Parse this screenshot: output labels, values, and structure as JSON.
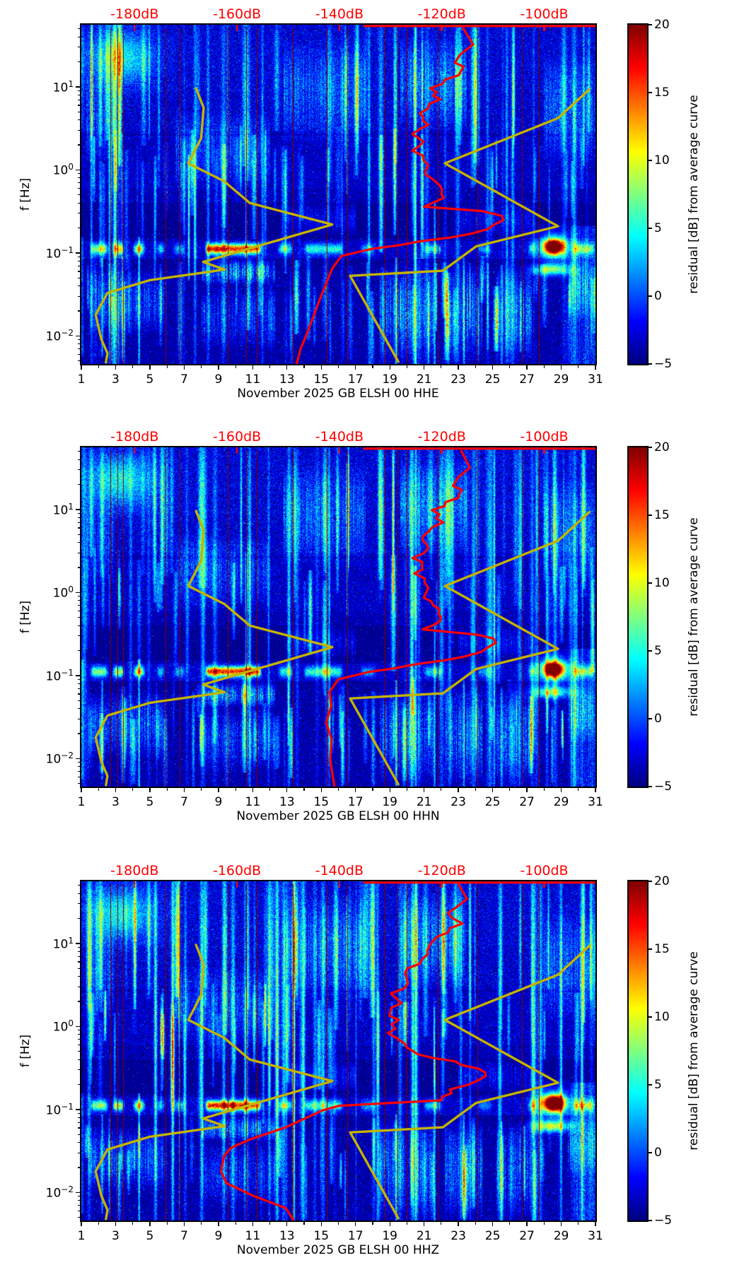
{
  "chart_data": {
    "type": "heatmap",
    "description": "Seismic PPSD residual spectrograms, three components, with Peterson noise models and station average PSD curves overlaid against a top dB axis",
    "x_axis": {
      "unit": "day of month",
      "ticks": [
        1,
        3,
        5,
        7,
        9,
        11,
        13,
        15,
        17,
        19,
        21,
        23,
        25,
        27,
        29,
        31
      ],
      "minor_ticks_every_day": true,
      "range": [
        1,
        31
      ]
    },
    "y_axis": {
      "label": "f [Hz]",
      "scale": "log",
      "ticks": [
        "10^1",
        "10^0",
        "10^-1",
        "10^-2"
      ],
      "range_hz": [
        0.0047,
        56
      ]
    },
    "top_axis": {
      "ticks": [
        "-180dB",
        "-160dB",
        "-140dB",
        "-120dB",
        "-100dB"
      ],
      "tick_values_db": [
        -180,
        -160,
        -140,
        -120,
        -100
      ],
      "range_db": [
        -190.4,
        -90.0
      ],
      "color": "#ff0000"
    },
    "colorbar": {
      "label": "residual [dB] from average curve",
      "ticks": [
        20,
        15,
        10,
        5,
        0,
        -5
      ],
      "range": [
        -5,
        20
      ],
      "colormap": "jet"
    },
    "noise_models": {
      "color": "#c3b300",
      "nlnm_db_hz": [
        [
          -168,
          9.6
        ],
        [
          -166.5,
          5.6
        ],
        [
          -167,
          2.4
        ],
        [
          -169.5,
          1.2
        ],
        [
          -162.5,
          0.73
        ],
        [
          -157.5,
          0.4
        ],
        [
          -141.4,
          0.22
        ],
        [
          -166.6,
          0.078
        ],
        [
          -162.4,
          0.063
        ],
        [
          -177,
          0.047
        ],
        [
          -185.3,
          0.033
        ],
        [
          -187.6,
          0.018
        ],
        [
          -186.5,
          0.0092
        ],
        [
          -185.3,
          0.0062
        ],
        [
          -185.6,
          0.0048
        ]
      ],
      "nhnm_db_hz": [
        [
          -91.2,
          9.3
        ],
        [
          -97.3,
          4.2
        ],
        [
          -119.4,
          1.2
        ],
        [
          -97.3,
          0.21
        ],
        [
          -113.3,
          0.12
        ],
        [
          -119.8,
          0.061
        ],
        [
          -137.9,
          0.053
        ],
        [
          -128.5,
          0.0049
        ]
      ]
    },
    "average_curve_color": "#ff0000",
    "panels": [
      {
        "channel": "HHE",
        "xlabel": "November 2025 GB ELSH 00 HHE",
        "seed": 101,
        "hot_blob_gain": 1.0,
        "average_psd_db_hz": [
          [
            -115.8,
            50.6
          ],
          [
            -113.9,
            32.4
          ],
          [
            -117.5,
            21.8
          ],
          [
            -115.7,
            15.6
          ],
          [
            -121.9,
            9.6
          ],
          [
            -120.8,
            7.1
          ],
          [
            -124.2,
            4.8
          ],
          [
            -123.0,
            3.5
          ],
          [
            -125.6,
            2.7
          ],
          [
            -123.7,
            2.2
          ],
          [
            -125.4,
            1.7
          ],
          [
            -123.0,
            1.3
          ],
          [
            -123.0,
            0.88
          ],
          [
            -120.2,
            0.64
          ],
          [
            -119.8,
            0.46
          ],
          [
            -123.3,
            0.36
          ],
          [
            -112.4,
            0.32
          ],
          [
            -107.8,
            0.28
          ],
          [
            -109.2,
            0.22
          ],
          [
            -114.0,
            0.17
          ],
          [
            -133.6,
            0.112
          ],
          [
            -139.6,
            0.092
          ],
          [
            -141.4,
            0.065
          ],
          [
            -142.5,
            0.044
          ],
          [
            -143.9,
            0.027
          ],
          [
            -145.1,
            0.017
          ],
          [
            -146.6,
            0.0097
          ],
          [
            -147.6,
            0.007
          ],
          [
            -148.3,
            0.0047
          ]
        ]
      },
      {
        "channel": "HHN",
        "xlabel": "November 2025 GB ELSH 00 HHN",
        "seed": 202,
        "hot_blob_gain": 0.95,
        "average_psd_db_hz": [
          [
            -116.2,
            50.6
          ],
          [
            -114.5,
            32.0
          ],
          [
            -117.9,
            21.5
          ],
          [
            -116.0,
            15.4
          ],
          [
            -121.4,
            9.8
          ],
          [
            -120.2,
            7.0
          ],
          [
            -124.0,
            4.7
          ],
          [
            -122.6,
            3.4
          ],
          [
            -125.2,
            2.6
          ],
          [
            -123.4,
            2.1
          ],
          [
            -125.0,
            1.7
          ],
          [
            -122.8,
            1.3
          ],
          [
            -123.2,
            0.87
          ],
          [
            -120.6,
            0.63
          ],
          [
            -120.2,
            0.45
          ],
          [
            -123.6,
            0.36
          ],
          [
            -113.5,
            0.31
          ],
          [
            -109.5,
            0.28
          ],
          [
            -110.4,
            0.22
          ],
          [
            -115.1,
            0.17
          ],
          [
            -134.4,
            0.11
          ],
          [
            -140.2,
            0.09
          ],
          [
            -141.9,
            0.064
          ],
          [
            -141.6,
            0.043
          ],
          [
            -142.6,
            0.027
          ],
          [
            -141.5,
            0.017
          ],
          [
            -141.8,
            0.0097
          ],
          [
            -141.3,
            0.0062
          ],
          [
            -141.0,
            0.0047
          ]
        ]
      },
      {
        "channel": "HHZ",
        "xlabel": "November 2025 GB ELSH 00 HHZ",
        "seed": 303,
        "hot_blob_gain": 1.1,
        "average_psd_db_hz": [
          [
            -116.8,
            52.7
          ],
          [
            -115.1,
            34.3
          ],
          [
            -118.6,
            23.2
          ],
          [
            -116.5,
            17.3
          ],
          [
            -122.0,
            10.6
          ],
          [
            -123.4,
            6.5
          ],
          [
            -127.6,
            4.4
          ],
          [
            -126.2,
            3.3
          ],
          [
            -129.6,
            2.5
          ],
          [
            -128.2,
            1.9
          ],
          [
            -130.6,
            1.5
          ],
          [
            -128.9,
            1.2
          ],
          [
            -130.0,
            0.83
          ],
          [
            -127.6,
            0.62
          ],
          [
            -124.8,
            0.46
          ],
          [
            -117.9,
            0.38
          ],
          [
            -111.1,
            0.28
          ],
          [
            -112.4,
            0.23
          ],
          [
            -117.9,
            0.174
          ],
          [
            -120.1,
            0.129
          ],
          [
            -140.0,
            0.111
          ],
          [
            -143.2,
            0.098
          ],
          [
            -150.5,
            0.061
          ],
          [
            -157.3,
            0.044
          ],
          [
            -161.0,
            0.035
          ],
          [
            -162.5,
            0.028
          ],
          [
            -163.1,
            0.018
          ],
          [
            -162.1,
            0.013
          ],
          [
            -156.9,
            0.0092
          ],
          [
            -150.5,
            0.0065
          ],
          [
            -149.0,
            0.0047
          ]
        ]
      }
    ],
    "texture": {
      "gap_line_days": [
        2.7,
        3.1,
        3.45,
        5.9,
        6.75,
        9.55,
        10.6,
        11.25,
        13.35,
        15.3,
        16.5,
        18.7,
        19.45,
        20.0,
        21.8,
        24.1,
        26.7,
        27.7
      ],
      "microseism_band_hz": [
        0.1,
        0.2
      ],
      "microseism_segments_day_day_gain": [
        [
          1.45,
          2.6,
          0.7
        ],
        [
          2.75,
          3.55,
          0.8
        ],
        [
          3.95,
          4.75,
          0.8
        ],
        [
          5.3,
          5.9,
          0.45
        ],
        [
          6.3,
          7.1,
          0.4
        ],
        [
          8.15,
          11.55,
          1.0
        ],
        [
          12.4,
          13.4,
          0.5
        ],
        [
          13.9,
          16.3,
          0.55
        ],
        [
          17.2,
          18.2,
          0.35
        ],
        [
          20.9,
          22.1,
          0.45
        ],
        [
          24.0,
          25.0,
          0.3
        ],
        [
          27.0,
          27.6,
          0.4
        ],
        [
          29.6,
          31.0,
          0.55
        ]
      ],
      "hot_blob": {
        "day": 28.55,
        "hz": 0.12,
        "residual_db": 20
      },
      "high_freq_glow": {
        "days": [
          2.0,
          5.0
        ],
        "hz": [
          15,
          50
        ]
      },
      "bright_columns": [
        [
          4.35,
          300,
          480,
          9
        ],
        [
          20.5,
          0,
          480,
          7
        ],
        [
          19.35,
          330,
          480,
          8
        ],
        [
          21.6,
          250,
          480,
          8
        ],
        [
          2.2,
          330,
          470,
          7
        ],
        [
          16.5,
          20,
          240,
          6
        ],
        [
          23.3,
          330,
          480,
          7
        ],
        [
          25.5,
          340,
          480,
          6
        ],
        [
          10.6,
          150,
          330,
          7
        ],
        [
          30.3,
          0,
          200,
          6
        ]
      ],
      "haze_regions_day_day_y_y_gain": [
        [
          1.4,
          6.0,
          345,
          440,
          4.0
        ],
        [
          8.0,
          12.3,
          330,
          368,
          5.5
        ],
        [
          8.0,
          12.3,
          368,
          460,
          3.0
        ],
        [
          18.4,
          21.6,
          330,
          480,
          4.5
        ],
        [
          22.2,
          24.4,
          332,
          480,
          5.0
        ],
        [
          25.2,
          27.3,
          338,
          480,
          4.5
        ],
        [
          29.4,
          31.0,
          325,
          420,
          4.5
        ],
        [
          12.8,
          17.6,
          20,
          170,
          3.5
        ],
        [
          19.6,
          23.5,
          15,
          150,
          4.0
        ],
        [
          1.3,
          2.9,
          60,
          200,
          3.0
        ],
        [
          28.0,
          31.0,
          40,
          200,
          3.5
        ],
        [
          6.5,
          12.0,
          120,
          230,
          3.0
        ],
        [
          13.0,
          17.0,
          250,
          300,
          2.5
        ],
        [
          23.0,
          27.5,
          250,
          300,
          2.5
        ]
      ]
    }
  }
}
